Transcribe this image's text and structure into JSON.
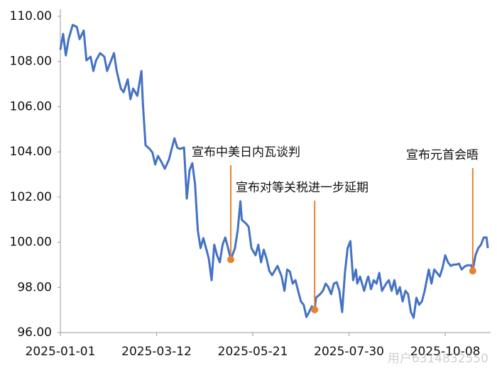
{
  "chart_data": {
    "type": "line",
    "x": [
      "2025-01-01",
      "2025-01-03",
      "2025-01-05",
      "2025-01-07",
      "2025-01-10",
      "2025-01-13",
      "2025-01-15",
      "2025-01-18",
      "2025-01-20",
      "2025-01-23",
      "2025-01-25",
      "2025-01-27",
      "2025-01-30",
      "2025-02-02",
      "2025-02-04",
      "2025-02-07",
      "2025-02-09",
      "2025-02-11",
      "2025-02-14",
      "2025-02-16",
      "2025-02-19",
      "2025-02-21",
      "2025-02-23",
      "2025-02-26",
      "2025-03-01",
      "2025-03-02",
      "2025-03-04",
      "2025-03-07",
      "2025-03-09",
      "2025-03-11",
      "2025-03-13",
      "2025-03-16",
      "2025-03-18",
      "2025-03-21",
      "2025-03-23",
      "2025-03-25",
      "2025-03-27",
      "2025-03-29",
      "2025-04-01",
      "2025-04-03",
      "2025-04-05",
      "2025-04-07",
      "2025-04-09",
      "2025-04-11",
      "2025-04-13",
      "2025-04-15",
      "2025-04-17",
      "2025-04-19",
      "2025-04-21",
      "2025-04-23",
      "2025-04-25",
      "2025-04-27",
      "2025-04-29",
      "2025-05-01",
      "2025-05-03",
      "2025-05-05",
      "2025-05-08",
      "2025-05-10",
      "2025-05-12",
      "2025-05-13",
      "2025-05-16",
      "2025-05-18",
      "2025-05-20",
      "2025-05-23",
      "2025-05-25",
      "2025-05-27",
      "2025-05-29",
      "2025-05-31",
      "2025-06-02",
      "2025-06-04",
      "2025-06-08",
      "2025-06-11",
      "2025-06-13",
      "2025-06-15",
      "2025-06-17",
      "2025-06-19",
      "2025-06-21",
      "2025-06-23",
      "2025-06-25",
      "2025-06-27",
      "2025-06-29",
      "2025-07-01",
      "2025-07-03",
      "2025-07-05",
      "2025-07-06",
      "2025-07-09",
      "2025-07-11",
      "2025-07-13",
      "2025-07-15",
      "2025-07-17",
      "2025-07-19",
      "2025-07-21",
      "2025-07-23",
      "2025-07-25",
      "2025-07-27",
      "2025-07-29",
      "2025-07-31",
      "2025-08-02",
      "2025-08-04",
      "2025-08-05",
      "2025-08-07",
      "2025-08-10",
      "2025-08-12",
      "2025-08-13",
      "2025-08-15",
      "2025-08-17",
      "2025-08-19",
      "2025-08-21",
      "2025-08-23",
      "2025-08-26",
      "2025-08-28",
      "2025-08-30",
      "2025-09-01",
      "2025-09-03",
      "2025-09-05",
      "2025-09-07",
      "2025-09-09",
      "2025-09-11",
      "2025-09-13",
      "2025-09-15",
      "2025-09-17",
      "2025-09-19",
      "2025-09-21",
      "2025-09-23",
      "2025-09-26",
      "2025-09-28",
      "2025-09-30",
      "2025-10-02",
      "2025-10-04",
      "2025-10-06",
      "2025-10-08",
      "2025-10-10",
      "2025-10-12",
      "2025-10-14",
      "2025-10-16",
      "2025-10-18",
      "2025-10-20",
      "2025-10-22",
      "2025-10-24",
      "2025-10-27",
      "2025-10-28",
      "2025-10-30",
      "2025-11-01",
      "2025-11-03",
      "2025-11-05",
      "2025-11-07",
      "2025-11-08"
    ],
    "series": [
      {
        "color": "#4472c4",
        "values": [
          108.52,
          109.22,
          108.27,
          108.99,
          109.62,
          109.53,
          108.99,
          109.37,
          108.05,
          108.21,
          107.58,
          108.05,
          108.37,
          108.21,
          107.58,
          108.05,
          108.37,
          107.58,
          106.8,
          106.64,
          107.21,
          106.33,
          106.8,
          106.48,
          107.58,
          106.17,
          104.29,
          104.13,
          103.97,
          103.44,
          103.82,
          103.5,
          103.25,
          103.66,
          104.13,
          104.6,
          104.19,
          104.13,
          104.19,
          101.93,
          103.19,
          103.5,
          102.56,
          100.52,
          99.74,
          100.18,
          99.74,
          99.27,
          98.32,
          99.89,
          99.42,
          99.11,
          99.89,
          100.21,
          99.74,
          99.23,
          99.74,
          100.52,
          101.81,
          100.99,
          100.83,
          100.68,
          99.74,
          99.42,
          99.89,
          99.11,
          99.67,
          99.27,
          98.73,
          98.54,
          98.95,
          98.48,
          97.85,
          98.79,
          98.7,
          98.17,
          98.32,
          97.85,
          97.38,
          97.23,
          96.69,
          96.91,
          97.16,
          97.01,
          97.54,
          97.7,
          97.85,
          98.17,
          98.01,
          97.7,
          98.17,
          98.23,
          97.85,
          96.91,
          98.64,
          99.74,
          100.05,
          98.32,
          98.79,
          98.17,
          98.48,
          97.85,
          98.32,
          98.48,
          97.92,
          98.32,
          98.17,
          98.64,
          97.85,
          98.17,
          98.32,
          97.85,
          98.32,
          97.7,
          98.01,
          97.38,
          97.85,
          97.7,
          96.91,
          96.66,
          97.54,
          97.23,
          97.38,
          97.85,
          98.79,
          98.17,
          98.79,
          98.64,
          98.48,
          98.86,
          99.42,
          99.11,
          98.95,
          99.01,
          99.01,
          99.05,
          98.79,
          98.92,
          98.98,
          98.98,
          98.73,
          99.42,
          99.74,
          99.89,
          100.21,
          100.21,
          99.74
        ]
      }
    ],
    "xlim": [
      "2025-01-01",
      "2025-11-10"
    ],
    "xticks": [
      "2025-01-01",
      "2025-03-12",
      "2025-05-21",
      "2025-07-30",
      "2025-10-08"
    ],
    "ylim": [
      96,
      110
    ],
    "yticks": [
      {
        "value": 96,
        "label": "96.00"
      },
      {
        "value": 98,
        "label": "98.00"
      },
      {
        "value": 100,
        "label": "100.00"
      },
      {
        "value": 102,
        "label": "102.00"
      },
      {
        "value": 104,
        "label": "104.00"
      },
      {
        "value": 106,
        "label": "106.00"
      },
      {
        "value": 108,
        "label": "108.00"
      },
      {
        "value": 110,
        "label": "110.00"
      }
    ],
    "annotations": [
      {
        "x": "2025-05-05",
        "y": 99.23,
        "text": "宣布中美日内瓦谈判",
        "color": "#e8822f"
      },
      {
        "x": "2025-07-05",
        "y": 97.01,
        "text": "宣布对等关税进一步延期",
        "color": "#e8822f"
      },
      {
        "x": "2025-10-28",
        "y": 98.73,
        "text": "宣布元首会晤",
        "color": "#e8822f"
      }
    ],
    "watermark": "用户6314832550"
  }
}
